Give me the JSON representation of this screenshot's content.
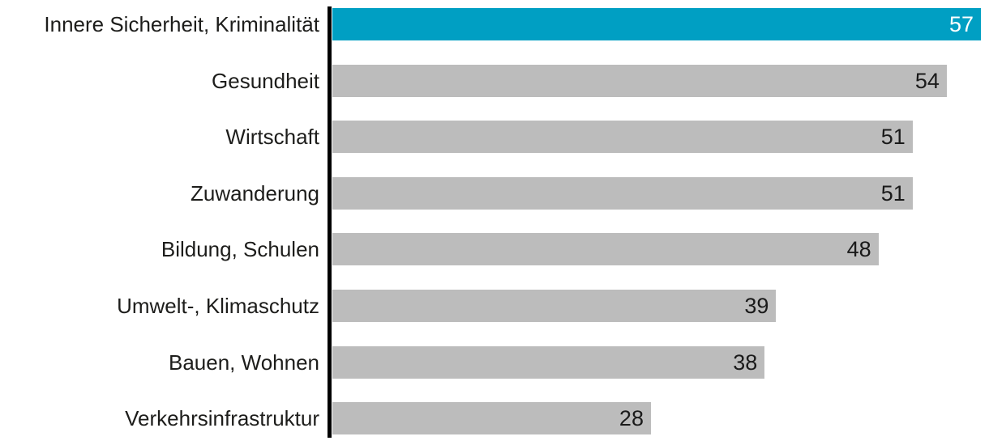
{
  "chart_data": {
    "type": "bar",
    "orientation": "horizontal",
    "title": "",
    "xlabel": "",
    "ylabel": "",
    "xlim": [
      0,
      57
    ],
    "grid": false,
    "legend": false,
    "categories": [
      "Innere Sicherheit, Kriminalität",
      "Gesundheit",
      "Wirtschaft",
      "Zuwanderung",
      "Bildung, Schulen",
      "Umwelt-, Klimaschutz",
      "Bauen, Wohnen",
      "Verkehrsinfrastruktur"
    ],
    "values": [
      57,
      54,
      51,
      51,
      48,
      39,
      38,
      28
    ],
    "highlight_index": 0,
    "colors": {
      "highlight_bar": "#009FC3",
      "default_bar": "#BCBCBC",
      "axis": "#000000",
      "category_text": "#1D1D1B",
      "value_text_default": "#1A1A1A",
      "value_text_highlight": "#FFFFFF",
      "background": "#FFFFFF"
    }
  }
}
